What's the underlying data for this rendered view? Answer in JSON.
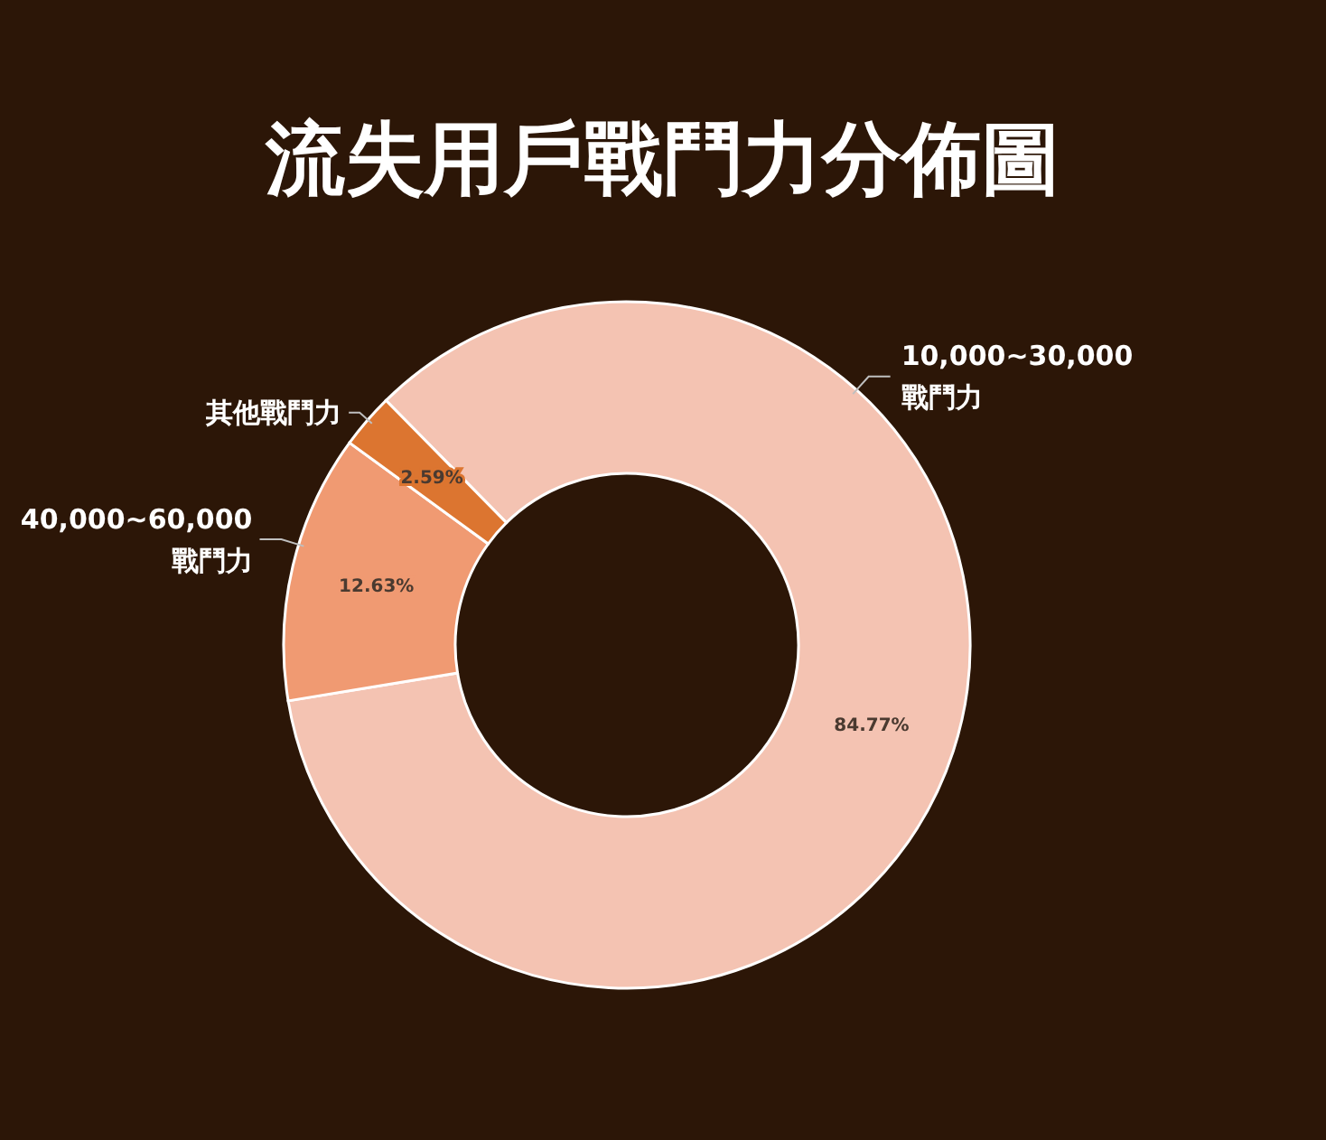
{
  "chart_data": {
    "type": "donut",
    "title": "流失用戶戰鬥力分佈圖",
    "categories": [
      "10,000~30,000\n戰鬥力",
      "40,000~60,000\n戰鬥力",
      "其他戰鬥力"
    ],
    "values": [
      84.77,
      12.63,
      2.59
    ],
    "colors": [
      "#f4c3b2",
      "#f09a72",
      "#dc7530"
    ],
    "value_labels": [
      "84.77%",
      "12.63%",
      "2.59%"
    ]
  }
}
